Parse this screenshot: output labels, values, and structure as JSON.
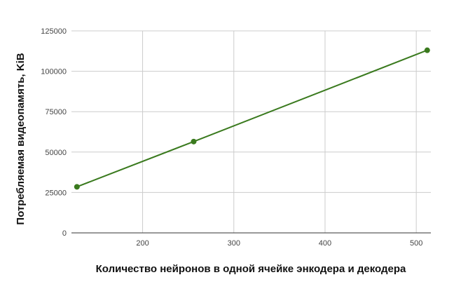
{
  "chart_data": {
    "type": "line",
    "title": "",
    "xlabel": "Количество нейронов в  одной ячейке энкодера и декодера",
    "ylabel": "Потребляемая видеопамять, KiB",
    "x": [
      128,
      256,
      512
    ],
    "series": [
      {
        "values": [
          28500,
          56500,
          113000
        ],
        "color": "#3a7a1e"
      }
    ],
    "xlim": [
      122,
      516
    ],
    "ylim": [
      0,
      125000
    ],
    "xticks": [
      200,
      300,
      400,
      500
    ],
    "yticks": [
      0,
      25000,
      50000,
      75000,
      100000,
      125000
    ],
    "ytick_labels": [
      "0",
      "25000",
      "50000",
      "75000",
      "100000",
      "125000"
    ],
    "xtick_labels": [
      "200",
      "300",
      "400",
      "500"
    ],
    "grid": true,
    "legend": "none"
  }
}
